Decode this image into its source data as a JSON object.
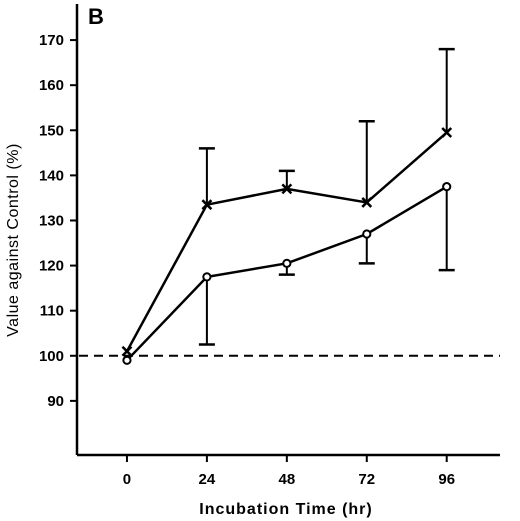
{
  "chart_data": {
    "type": "line",
    "panel_label": "B",
    "xlabel": "Incubation Time (hr)",
    "ylabel": "Value against Control (%)",
    "x": [
      0,
      24,
      48,
      72,
      96
    ],
    "xlim": [
      -15,
      112
    ],
    "ylim": [
      78,
      178
    ],
    "yticks": [
      90,
      100,
      110,
      120,
      130,
      140,
      150,
      160,
      170
    ],
    "xticks": [
      0,
      24,
      48,
      72,
      96
    ],
    "reference_line": {
      "y": 100,
      "style": "dashed"
    },
    "grid": false,
    "series": [
      {
        "marker": "x",
        "values": [
          101,
          133.5,
          137,
          134,
          149.5
        ],
        "error_upper": [
          null,
          146,
          141,
          152,
          168
        ],
        "error_lower": [
          null,
          null,
          null,
          null,
          null
        ]
      },
      {
        "marker": "open-circle",
        "values": [
          99,
          117.5,
          120.5,
          127,
          137.5
        ],
        "error_upper": [
          null,
          null,
          null,
          null,
          null
        ],
        "error_lower": [
          null,
          102.5,
          118,
          120.5,
          119
        ]
      }
    ]
  }
}
